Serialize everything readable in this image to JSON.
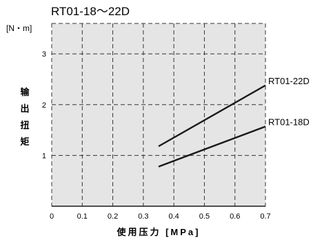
{
  "chart_data": {
    "type": "line",
    "title": "RT01-18～22D",
    "ylabel": "输出扭矩",
    "yunit": "[N・m]",
    "xlabel": "使用压力 [MPa]",
    "xlim": [
      0,
      0.7
    ],
    "ylim": [
      0,
      3.6
    ],
    "x_ticks": [
      0,
      0.1,
      0.2,
      0.3,
      0.4,
      0.5,
      0.6,
      0.7
    ],
    "x_tick_labels": [
      "0",
      "0.1",
      "0.2",
      "0.3",
      "0.4",
      "0.5",
      "0.6",
      "0.7"
    ],
    "y_ticks": [
      1,
      2,
      3
    ],
    "y_tick_labels": [
      "1",
      "2",
      "3"
    ],
    "grid": true,
    "series": [
      {
        "name": "RT01-22D",
        "x": [
          0.35,
          0.7
        ],
        "y": [
          1.18,
          2.38
        ]
      },
      {
        "name": "RT01-18D",
        "x": [
          0.35,
          0.7
        ],
        "y": [
          0.78,
          1.57
        ]
      }
    ],
    "colors": {
      "plot_bg": "#e5e5e5",
      "line": "#1a1a1a",
      "grid": "#333333"
    }
  }
}
